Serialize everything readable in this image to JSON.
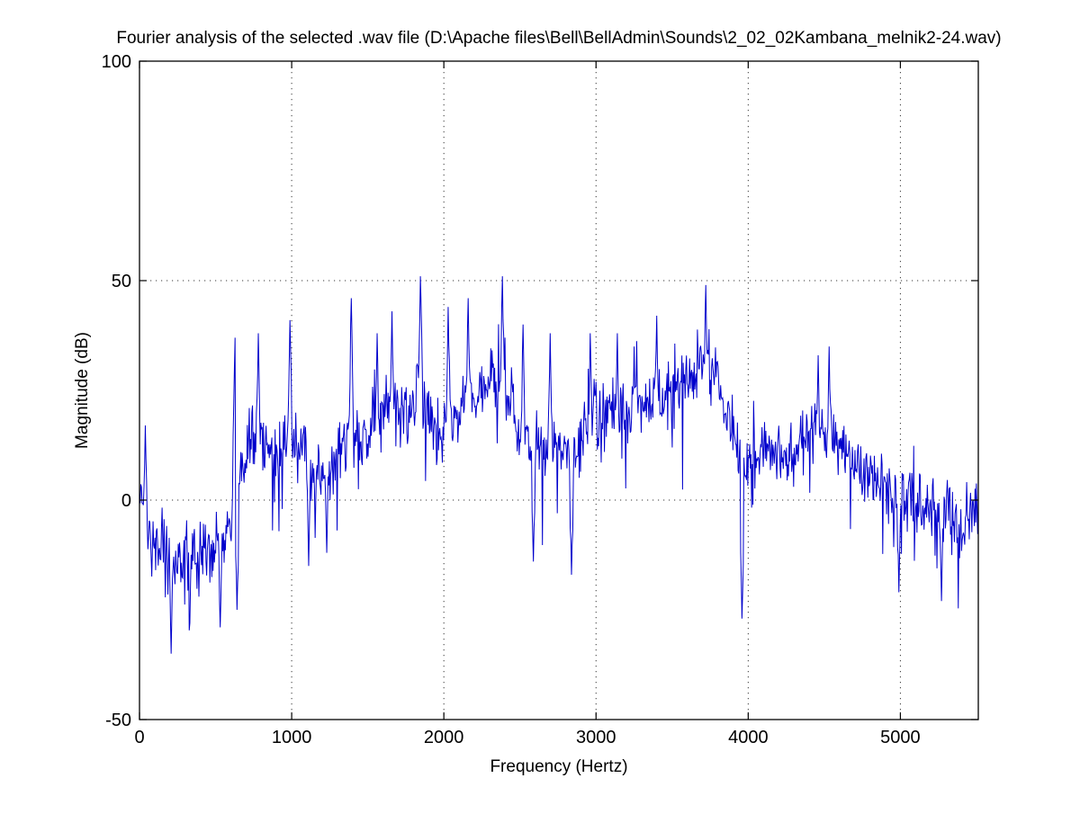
{
  "chart_data": {
    "type": "line",
    "title": "Fourier analysis of the selected .wav file (D:\\Apache files\\Bell\\BellAdmin\\Sounds\\2_02_02Kambana_melnik2-24.wav)",
    "xlabel": "Frequency (Hertz)",
    "ylabel": "Magnitude (dB)",
    "xlim": [
      0,
      5512
    ],
    "ylim": [
      -50,
      100
    ],
    "xticks": [
      0,
      1000,
      2000,
      3000,
      4000,
      5000
    ],
    "yticks": [
      -50,
      0,
      50,
      100
    ],
    "grid": "dotted",
    "legend": null,
    "line_color": "#0000CC",
    "background": "#ffffff",
    "n_points": 1300,
    "noise": {
      "seed": 7,
      "sigma": 9,
      "dip_prob": 0.05,
      "dip_extra": 14,
      "bump_prob": 0.03,
      "bump_extra": 10
    },
    "envelope": [
      [
        0,
        0
      ],
      [
        25,
        -3
      ],
      [
        60,
        -9
      ],
      [
        120,
        -12
      ],
      [
        200,
        -13
      ],
      [
        300,
        -13
      ],
      [
        400,
        -12
      ],
      [
        480,
        -11
      ],
      [
        560,
        -8
      ],
      [
        620,
        0
      ],
      [
        680,
        8
      ],
      [
        740,
        12
      ],
      [
        820,
        13
      ],
      [
        900,
        12
      ],
      [
        980,
        14
      ],
      [
        1040,
        12
      ],
      [
        1120,
        8
      ],
      [
        1200,
        7
      ],
      [
        1280,
        10
      ],
      [
        1360,
        13
      ],
      [
        1440,
        16
      ],
      [
        1520,
        17
      ],
      [
        1600,
        20
      ],
      [
        1680,
        22
      ],
      [
        1760,
        20
      ],
      [
        1840,
        24
      ],
      [
        1900,
        20
      ],
      [
        1960,
        16
      ],
      [
        2040,
        18
      ],
      [
        2120,
        21
      ],
      [
        2200,
        23
      ],
      [
        2280,
        26
      ],
      [
        2360,
        28
      ],
      [
        2420,
        24
      ],
      [
        2500,
        15
      ],
      [
        2580,
        12
      ],
      [
        2660,
        13
      ],
      [
        2740,
        13
      ],
      [
        2820,
        11
      ],
      [
        2900,
        13
      ],
      [
        2960,
        19
      ],
      [
        3040,
        22
      ],
      [
        3120,
        22
      ],
      [
        3200,
        20
      ],
      [
        3280,
        21
      ],
      [
        3360,
        22
      ],
      [
        3440,
        22
      ],
      [
        3520,
        25
      ],
      [
        3600,
        28
      ],
      [
        3680,
        32
      ],
      [
        3740,
        33
      ],
      [
        3820,
        24
      ],
      [
        3900,
        16
      ],
      [
        3960,
        8
      ],
      [
        4040,
        8
      ],
      [
        4120,
        11
      ],
      [
        4200,
        10
      ],
      [
        4280,
        11
      ],
      [
        4360,
        13
      ],
      [
        4440,
        16
      ],
      [
        4520,
        15
      ],
      [
        4600,
        11
      ],
      [
        4680,
        9
      ],
      [
        4760,
        7
      ],
      [
        4840,
        5
      ],
      [
        4920,
        2
      ],
      [
        5000,
        -1
      ],
      [
        5080,
        0
      ],
      [
        5160,
        -1
      ],
      [
        5240,
        -3
      ],
      [
        5320,
        -4
      ],
      [
        5400,
        -5
      ],
      [
        5512,
        -3
      ]
    ],
    "peaks": [
      [
        40,
        17
      ],
      [
        630,
        37
      ],
      [
        780,
        38
      ],
      [
        990,
        41
      ],
      [
        1390,
        46
      ],
      [
        1560,
        38
      ],
      [
        1660,
        43
      ],
      [
        1845,
        51
      ],
      [
        2030,
        44
      ],
      [
        2160,
        46
      ],
      [
        2385,
        51
      ],
      [
        2520,
        40
      ],
      [
        2700,
        38
      ],
      [
        2960,
        38
      ],
      [
        3140,
        38
      ],
      [
        3250,
        35
      ],
      [
        3400,
        42
      ],
      [
        3720,
        49
      ],
      [
        4460,
        33
      ],
      [
        4530,
        35
      ]
    ],
    "dips": [
      [
        210,
        -35
      ],
      [
        330,
        -28
      ],
      [
        530,
        -29
      ],
      [
        640,
        -25
      ],
      [
        1110,
        -15
      ],
      [
        1230,
        -12
      ],
      [
        2590,
        -14
      ],
      [
        2840,
        -17
      ],
      [
        3960,
        -27
      ],
      [
        4990,
        -21
      ],
      [
        5270,
        -23
      ]
    ]
  }
}
